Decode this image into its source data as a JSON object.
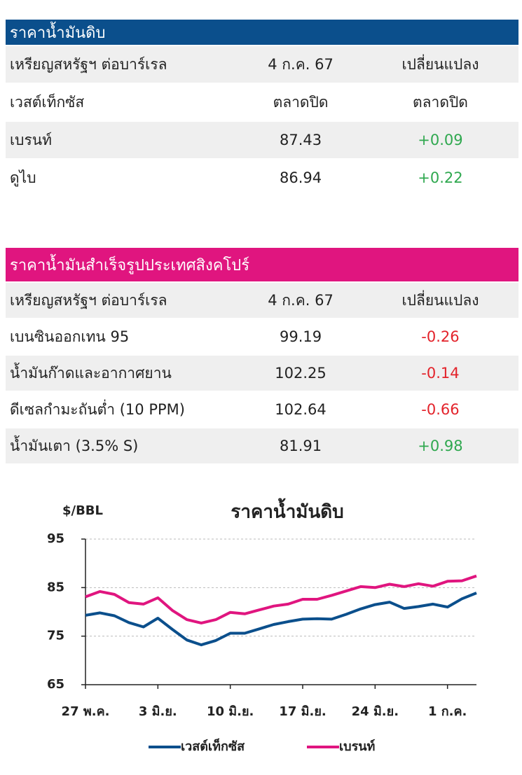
{
  "table1": {
    "title": "ราคาน้ำมันดิบ",
    "rows": [
      [
        "เหรียญสหรัฐฯ ต่อบาร์เรล",
        "4 ก.ค. 67",
        "เปลี่ยนแปลง"
      ],
      [
        "เวสต์เท็กซัส",
        "ตลาดปิด",
        "ตลาดปิด"
      ],
      [
        "เบรนท์",
        "87.43",
        "+0.09"
      ],
      [
        "ดูไบ",
        "86.94",
        "+0.22"
      ]
    ]
  },
  "table2": {
    "title": "ราคาน้ำมันสำเร็จรูปประเทศสิงคโปร์",
    "rows": [
      [
        "เหรียญสหรัฐฯ ต่อบาร์เรล",
        "4 ก.ค. 67",
        "เปลี่ยนแปลง"
      ],
      [
        "เบนซินออกเทน 95",
        "99.19",
        "-0.26"
      ],
      [
        "น้ำมันก๊าดและอากาศยาน",
        "102.25",
        "-0.14"
      ],
      [
        "ดีเซลกำมะถันต่ำ (10 PPM)",
        "102.64",
        "-0.66"
      ],
      [
        "น้ำมันเตา (3.5% S)",
        "81.91",
        "+0.98"
      ]
    ]
  },
  "chart_data": {
    "type": "line",
    "title": "ราคาน้ำมันดิบ",
    "y_label": "$/BBL",
    "categories": [
      "27 พ.ค.",
      null,
      null,
      null,
      null,
      "3 มิ.ย.",
      null,
      null,
      null,
      null,
      "10 มิ.ย.",
      null,
      null,
      null,
      null,
      "17 มิ.ย.",
      null,
      null,
      null,
      null,
      "24 มิ.ย.",
      null,
      null,
      null,
      null,
      "1 ก.ค.",
      null,
      null
    ],
    "series": [
      {
        "name": "เวสต์เท็กซัส",
        "color": "#0b4f8c",
        "values": [
          79.3,
          79.8,
          79.2,
          77.8,
          76.9,
          78.7,
          76.4,
          74.2,
          73.2,
          74.1,
          75.6,
          75.6,
          76.5,
          77.4,
          78.0,
          78.5,
          78.6,
          78.5,
          79.5,
          80.6,
          81.5,
          82.0,
          80.7,
          81.1,
          81.6,
          81.0,
          82.7,
          83.9
        ]
      },
      {
        "name": "เบรนท์",
        "color": "#e0157f",
        "values": [
          83.1,
          84.2,
          83.6,
          81.9,
          81.6,
          82.9,
          80.3,
          78.4,
          77.7,
          78.4,
          79.9,
          79.6,
          80.4,
          81.2,
          81.6,
          82.6,
          82.6,
          83.4,
          84.3,
          85.2,
          85.0,
          85.7,
          85.2,
          85.8,
          85.3,
          86.3,
          86.4,
          87.4
        ]
      }
    ],
    "ylim": [
      65,
      95
    ],
    "yticks": [
      65,
      75,
      85,
      95
    ],
    "grid": true
  }
}
